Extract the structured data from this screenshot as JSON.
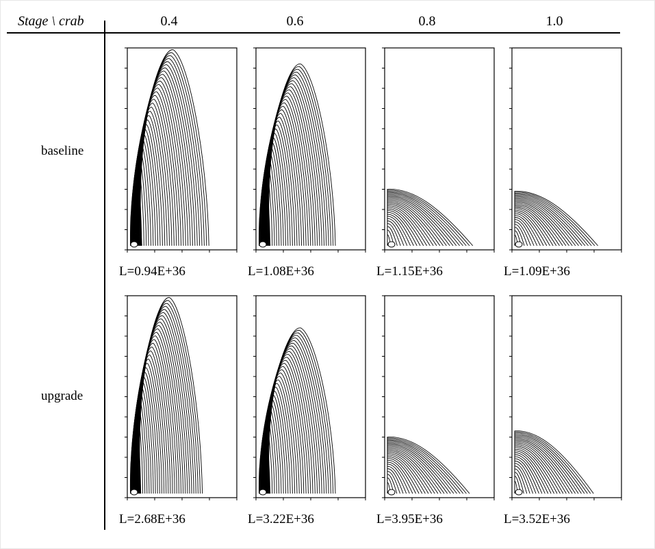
{
  "header": {
    "stage_crab": "Stage \\ crab"
  },
  "columns": [
    "0.4",
    "0.6",
    "0.8",
    "1.0"
  ],
  "rows": [
    {
      "label": "baseline",
      "luminosities": [
        "L=0.94E+36",
        "L=1.08E+36",
        "L=1.15E+36",
        "L=1.09E+36"
      ]
    },
    {
      "label": "upgrade",
      "luminosities": [
        "L=2.68E+36",
        "L=3.22E+36",
        "L=3.95E+36",
        "L=3.52E+36"
      ]
    }
  ]
}
